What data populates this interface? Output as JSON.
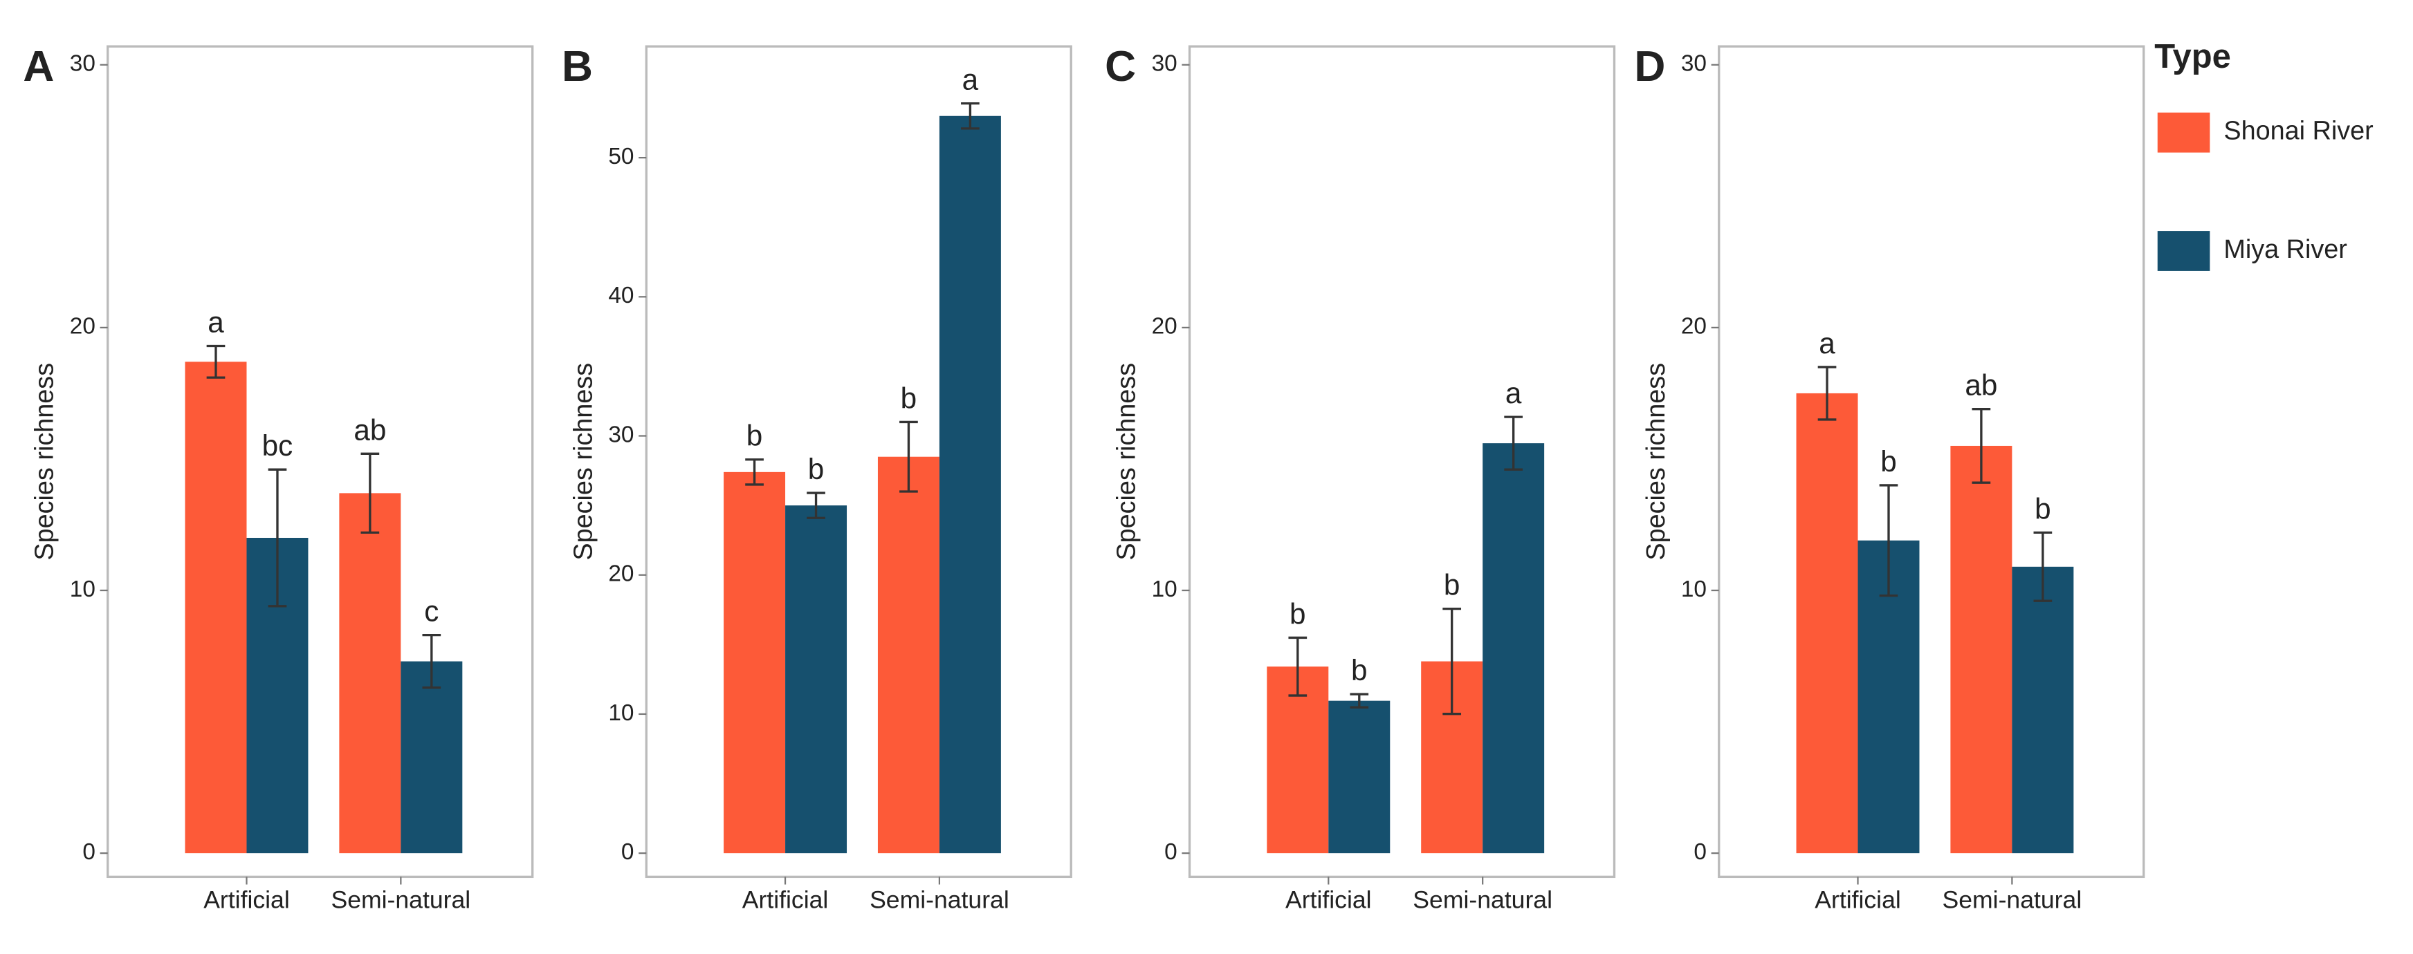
{
  "chart_data": [
    {
      "type": "bar",
      "panel": "A",
      "y_label": "Species richness",
      "categories": [
        "Artificial",
        "Semi-natural"
      ],
      "ylim": [
        -0.9,
        30.7
      ],
      "yticks": [
        0,
        10,
        20,
        30
      ],
      "series": [
        {
          "values": [
            18.7,
            13.7
          ],
          "errors": [
            0.6,
            1.5
          ],
          "letters": [
            "a",
            "ab"
          ]
        },
        {
          "values": [
            12.0,
            7.3
          ],
          "errors": [
            2.6,
            1.0
          ],
          "letters": [
            "bc",
            "c"
          ]
        }
      ]
    },
    {
      "type": "bar",
      "panel": "B",
      "y_label": "Species richness",
      "categories": [
        "Artificial",
        "Semi-natural"
      ],
      "ylim": [
        -1.7,
        58
      ],
      "yticks": [
        0,
        10,
        20,
        30,
        40,
        50
      ],
      "series": [
        {
          "values": [
            27.4,
            28.5
          ],
          "errors": [
            0.9,
            2.5
          ],
          "letters": [
            "b",
            "b"
          ]
        },
        {
          "values": [
            25.0,
            53.0
          ],
          "errors": [
            0.9,
            0.9
          ],
          "letters": [
            "b",
            "a"
          ]
        }
      ]
    },
    {
      "type": "bar",
      "panel": "C",
      "y_label": "Species richness",
      "categories": [
        "Artificial",
        "Semi-natural"
      ],
      "ylim": [
        -0.9,
        30.7
      ],
      "yticks": [
        0,
        10,
        20,
        30
      ],
      "series": [
        {
          "values": [
            7.1,
            7.3
          ],
          "errors": [
            1.1,
            2.0
          ],
          "letters": [
            "b",
            "b"
          ]
        },
        {
          "values": [
            5.8,
            15.6
          ],
          "errors": [
            0.25,
            1.0
          ],
          "letters": [
            "b",
            "a"
          ]
        }
      ]
    },
    {
      "type": "bar",
      "panel": "D",
      "y_label": "Species richness",
      "categories": [
        "Artificial",
        "Semi-natural"
      ],
      "ylim": [
        -0.9,
        30.7
      ],
      "yticks": [
        0,
        10,
        20,
        30
      ],
      "series": [
        {
          "values": [
            17.5,
            15.5
          ],
          "errors": [
            1.0,
            1.4
          ],
          "letters": [
            "a",
            "ab"
          ]
        },
        {
          "values": [
            11.9,
            10.9
          ],
          "errors": [
            2.1,
            1.3
          ],
          "letters": [
            "b",
            "b"
          ]
        }
      ]
    }
  ],
  "legend": {
    "title": "Type",
    "items": [
      {
        "name": "Shonai River",
        "color": "#fd5a38"
      },
      {
        "name": "Miya River",
        "color": "#16506e"
      }
    ]
  }
}
